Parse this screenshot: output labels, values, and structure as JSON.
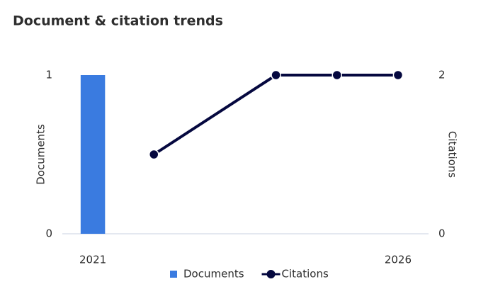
{
  "chart_data": {
    "type": "combo",
    "title": "Document & citation trends",
    "ylabel": "Documents",
    "y2label": "Citations",
    "xlim": [
      2020.5,
      2026.5
    ],
    "xticks": [
      2021,
      2026
    ],
    "ylim": [
      0,
      1
    ],
    "yticks": [
      0,
      1
    ],
    "y2lim": [
      0,
      2
    ],
    "y2ticks": [
      0,
      2
    ],
    "legend": "bottom",
    "series": [
      {
        "name": "Documents",
        "type": "bar",
        "color": "#3a7be0",
        "x": [
          2021
        ],
        "values": [
          1
        ]
      },
      {
        "name": "Citations",
        "type": "line",
        "axis": "y2",
        "color": "#05083f",
        "x": [
          2022,
          2024,
          2025,
          2026
        ],
        "values": [
          1,
          2,
          2,
          2
        ]
      }
    ]
  }
}
